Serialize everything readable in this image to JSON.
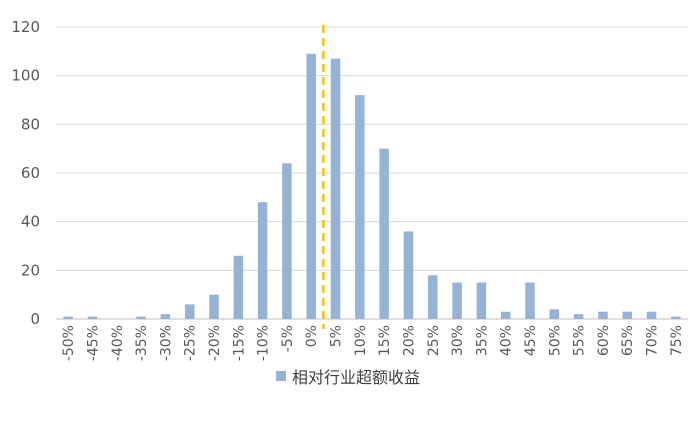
{
  "chart_data": {
    "type": "bar",
    "categories": [
      "-50%",
      "-45%",
      "-40%",
      "-35%",
      "-30%",
      "-25%",
      "-20%",
      "-15%",
      "-10%",
      "-5%",
      "0%",
      "5%",
      "10%",
      "15%",
      "20%",
      "25%",
      "30%",
      "35%",
      "40%",
      "45%",
      "50%",
      "55%",
      "60%",
      "65%",
      "70%",
      "75%"
    ],
    "series": [
      {
        "name": "相对行业超额收益",
        "values": [
          1,
          1,
          0,
          1,
          2,
          6,
          10,
          26,
          48,
          64,
          109,
          107,
          92,
          70,
          36,
          18,
          15,
          15,
          3,
          15,
          4,
          2,
          3,
          3,
          3,
          1
        ]
      }
    ],
    "title": "",
    "xlabel": "",
    "ylabel": "",
    "ylim": [
      0,
      120
    ],
    "yticks": [
      0,
      20,
      40,
      60,
      80,
      100,
      120
    ],
    "grid": true,
    "legend_position": "bottom",
    "reference_line": {
      "style": "dashed",
      "color": "#FFC000",
      "x_between": [
        "0%",
        "5%"
      ]
    },
    "bar_color": "#95B3D7",
    "grid_color": "#D9D9D9",
    "text_color": "#595959"
  }
}
